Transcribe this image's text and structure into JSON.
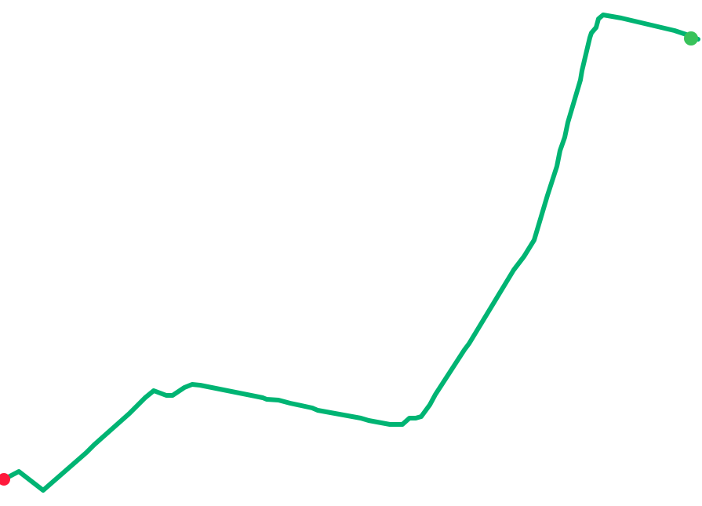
{
  "map": {
    "background_color": "#ffffff",
    "route": {
      "line_color": "#00b473",
      "start_marker": {
        "icon": "start-point-icon",
        "color": "#ff1a3c"
      },
      "end_marker": {
        "icon": "end-point-icon",
        "color": "#38c25a"
      }
    }
  }
}
